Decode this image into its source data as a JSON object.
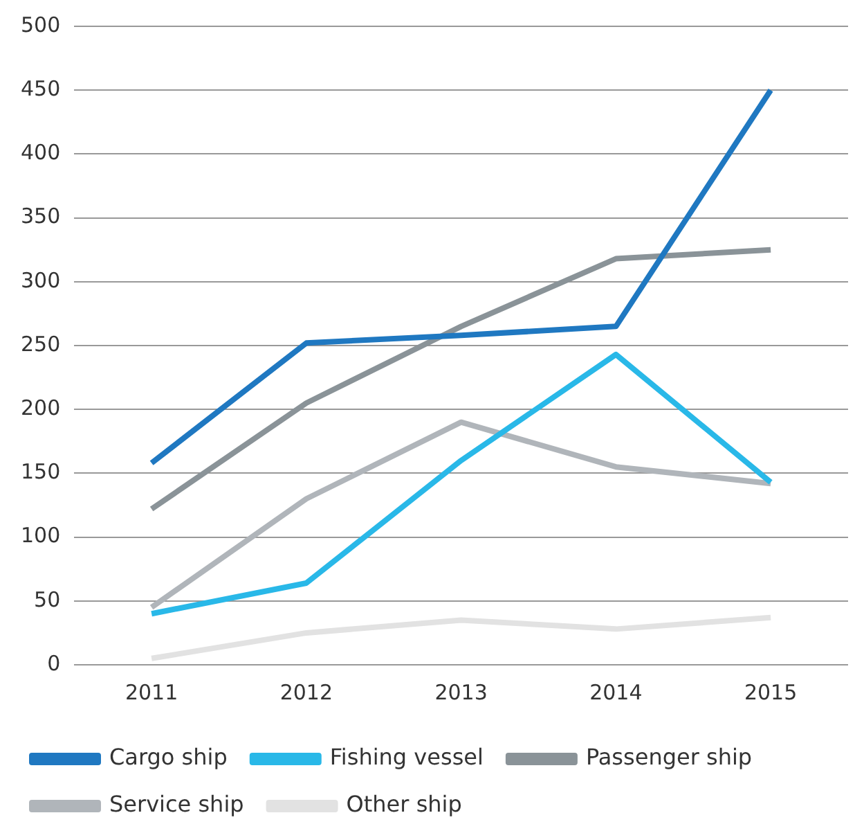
{
  "chart_data": {
    "type": "line",
    "categories": [
      "2011",
      "2012",
      "2013",
      "2014",
      "2015"
    ],
    "series": [
      {
        "name": "Cargo ship",
        "color": "#1f78c1",
        "values": [
          158,
          252,
          258,
          265,
          450
        ]
      },
      {
        "name": "Fishing vessel",
        "color": "#29b8e8",
        "values": [
          40,
          64,
          160,
          243,
          143
        ]
      },
      {
        "name": "Passenger ship",
        "color": "#8a9398",
        "values": [
          122,
          205,
          265,
          318,
          325
        ]
      },
      {
        "name": "Service ship",
        "color": "#b0b5ba",
        "values": [
          45,
          130,
          190,
          155,
          142
        ]
      },
      {
        "name": "Other ship",
        "color": "#e2e2e2",
        "values": [
          5,
          25,
          35,
          28,
          37
        ]
      }
    ],
    "ylim": [
      0,
      500
    ],
    "yticks": [
      0,
      50,
      100,
      150,
      200,
      250,
      300,
      350,
      400,
      450,
      500
    ],
    "grid": "y",
    "legend": "bottom",
    "marker": "none",
    "line_style": "solid"
  }
}
